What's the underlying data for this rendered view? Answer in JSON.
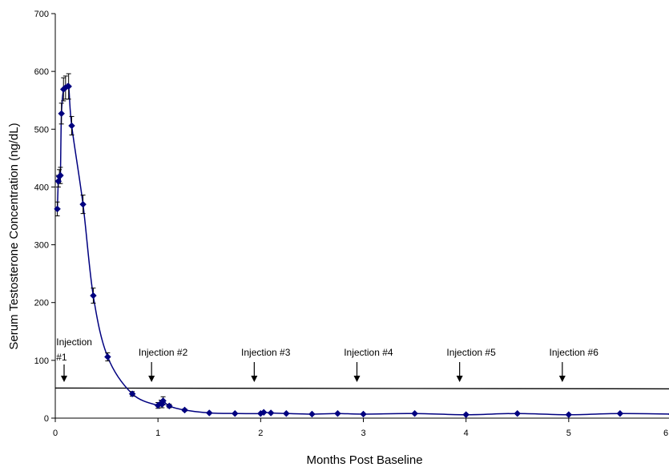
{
  "chart_data": {
    "type": "line",
    "title": "",
    "xlabel": "Months Post Baseline",
    "ylabel": "Serum Testosterone Concentration (ng/dL)",
    "xlim": [
      0,
      6
    ],
    "ylim": [
      0,
      700
    ],
    "x_ticks": [
      {
        "value": 0,
        "label": "0"
      },
      {
        "value": 1,
        "label": "1"
      },
      {
        "value": 2,
        "label": "2"
      },
      {
        "value": 3,
        "label": "3"
      },
      {
        "value": 4,
        "label": "4"
      },
      {
        "value": 5,
        "label": "5"
      },
      {
        "value": 6,
        "label": "6"
      }
    ],
    "y_ticks": [
      {
        "value": 0,
        "label": "0"
      },
      {
        "value": 100,
        "label": "100"
      },
      {
        "value": 200,
        "label": "200"
      },
      {
        "value": 300,
        "label": "300"
      },
      {
        "value": 400,
        "label": "400"
      },
      {
        "value": 500,
        "label": "500"
      },
      {
        "value": 600,
        "label": "600"
      },
      {
        "value": 700,
        "label": "700"
      }
    ],
    "grid": false,
    "legend": "none",
    "series_color": "#000080",
    "threshold_color": "#000000",
    "series": [
      {
        "x": [
          0.02,
          0.03,
          0.04,
          0.05,
          0.06,
          0.08,
          0.1,
          0.13,
          0.16,
          0.27,
          0.37,
          0.51,
          0.75,
          1.0,
          1.03,
          1.04,
          1.05,
          1.11,
          1.26,
          1.5,
          1.75,
          2.0,
          2.03,
          2.1,
          2.25,
          2.5,
          2.75,
          3.0,
          3.5,
          4.0,
          4.5,
          5.0,
          5.5,
          6.0
        ],
        "y": [
          362,
          410,
          418,
          420,
          527,
          569,
          572,
          574,
          506,
          370,
          212,
          106,
          42,
          22,
          26,
          24,
          30,
          21,
          14,
          9,
          8,
          8,
          10,
          9,
          8,
          7,
          8,
          7,
          8,
          6,
          8,
          6,
          8,
          7
        ],
        "err": [
          12,
          10,
          12,
          14,
          18,
          20,
          20,
          22,
          16,
          16,
          13,
          7,
          4,
          5,
          5,
          6,
          7,
          3,
          2,
          0,
          0,
          0,
          0,
          0,
          0,
          0,
          0,
          0,
          0,
          0,
          0,
          0,
          0,
          0
        ]
      }
    ],
    "threshold": {
      "y": 50
    },
    "annotations": [
      {
        "label": "Injection",
        "label2": "#1",
        "x": 0.1,
        "text_x": 0.08
      },
      {
        "label": "Injection #2",
        "x": 1.0,
        "text_x": 1.05
      },
      {
        "label": "Injection #3",
        "x": 2.0,
        "text_x": 2.05
      },
      {
        "label": "Injection #4",
        "x": 3.0,
        "text_x": 3.05
      },
      {
        "label": "Injection #5",
        "x": 4.0,
        "text_x": 4.05
      },
      {
        "label": "Injection #6",
        "x": 5.0,
        "text_x": 5.05
      }
    ]
  }
}
